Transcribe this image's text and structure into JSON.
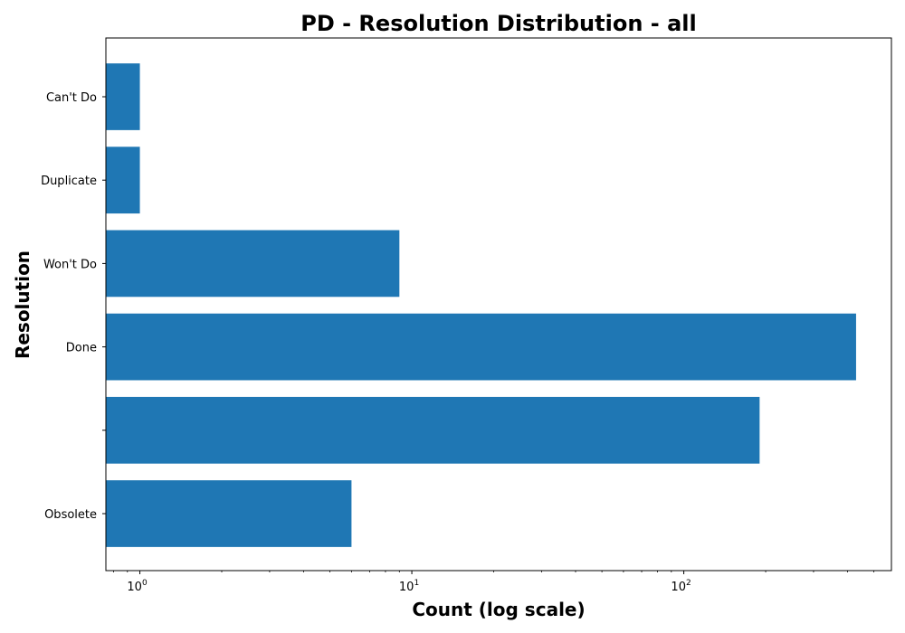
{
  "chart_data": {
    "type": "bar",
    "orientation": "horizontal",
    "title": "PD - Resolution Distribution - all",
    "xlabel": "Count (log scale)",
    "ylabel": "Resolution",
    "xscale": "log",
    "xlim": [
      0.75,
      580
    ],
    "x_ticks": [
      {
        "base": "10",
        "exp": "0",
        "value": 1
      },
      {
        "base": "10",
        "exp": "1",
        "value": 10
      },
      {
        "base": "10",
        "exp": "2",
        "value": 100
      }
    ],
    "categories": [
      "Can't Do",
      "Duplicate",
      "Won't Do",
      "Done",
      "",
      "Obsolete"
    ],
    "values": [
      1,
      1,
      9,
      430,
      190,
      6
    ],
    "bar_color": "#1f77b4",
    "grid": false,
    "legend": "none"
  }
}
